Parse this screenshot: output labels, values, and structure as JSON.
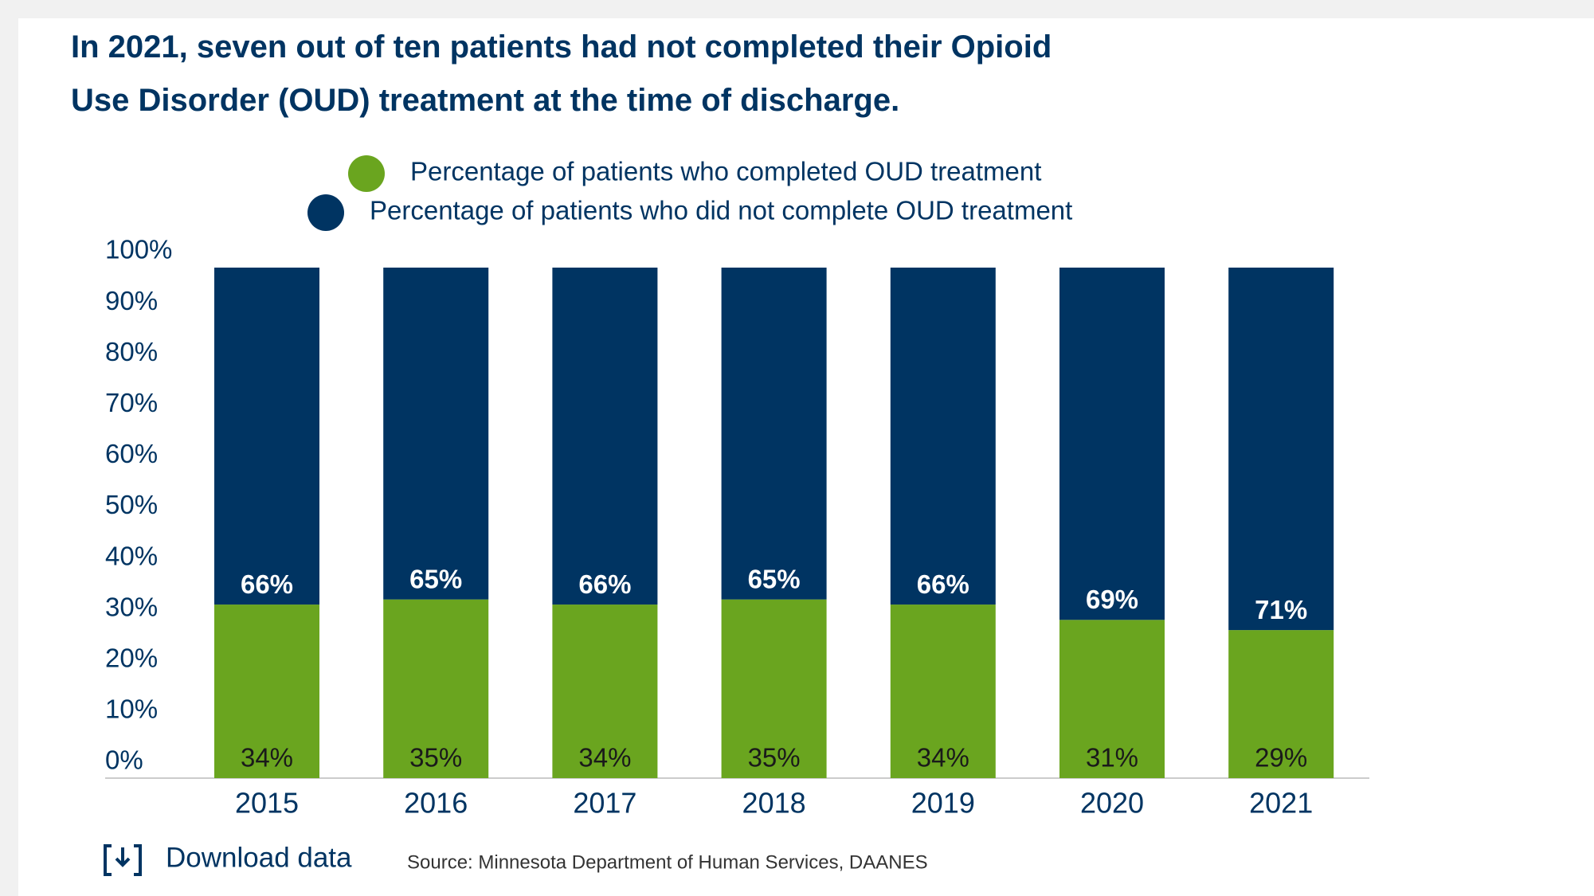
{
  "chart_data": {
    "type": "bar",
    "stacked": true,
    "title": "In 2021, seven out of ten patients had not completed their Opioid Use Disorder (OUD) treatment at the time of discharge.",
    "categories": [
      "2015",
      "2016",
      "2017",
      "2018",
      "2019",
      "2020",
      "2021"
    ],
    "series": [
      {
        "name": "Percentage of patients who completed OUD treatment",
        "color": "#6aa51f",
        "values": [
          34,
          35,
          34,
          35,
          34,
          31,
          29
        ],
        "value_labels": [
          "34%",
          "35%",
          "34%",
          "35%",
          "34%",
          "31%",
          "29%"
        ]
      },
      {
        "name": "Percentage of patients who did not complete OUD treatment",
        "color": "#003462",
        "values": [
          66,
          65,
          66,
          65,
          66,
          69,
          71
        ],
        "value_labels": [
          "66%",
          "65%",
          "66%",
          "65%",
          "66%",
          "69%",
          "71%"
        ]
      }
    ],
    "ylim": [
      0,
      100
    ],
    "yticks": [
      {
        "value": 0,
        "label": "0%"
      },
      {
        "value": 10,
        "label": "10%"
      },
      {
        "value": 20,
        "label": "20%"
      },
      {
        "value": 30,
        "label": "30%"
      },
      {
        "value": 40,
        "label": "40%"
      },
      {
        "value": 50,
        "label": "50%"
      },
      {
        "value": 60,
        "label": "60%"
      },
      {
        "value": 70,
        "label": "70%"
      },
      {
        "value": 80,
        "label": "80%"
      },
      {
        "value": 90,
        "label": "90%"
      },
      {
        "value": 100,
        "label": "100%"
      }
    ],
    "grid": false
  },
  "download_link": "Download data",
  "source": "Source: Minnesota Department of Human Services, DAANES"
}
